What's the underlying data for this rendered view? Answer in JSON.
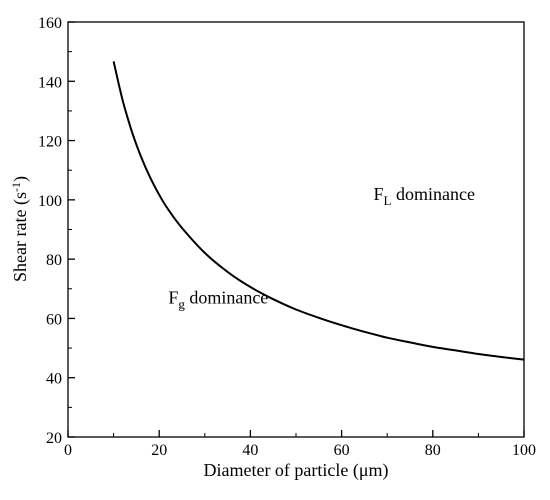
{
  "chart_data": {
    "type": "line",
    "title": "",
    "xlabel": "Diameter of particle (μm)",
    "ylabel": "Shear rate (s-1)",
    "xlim": [
      0,
      100
    ],
    "ylim": [
      20,
      160
    ],
    "xticks": [
      0,
      20,
      40,
      60,
      80,
      100
    ],
    "yticks": [
      20,
      40,
      60,
      80,
      100,
      120,
      140,
      160
    ],
    "grid": false,
    "legend": "none",
    "line_color": "#000000",
    "series": [
      {
        "x": [
          10,
          12,
          14,
          16,
          18,
          20,
          22,
          25,
          30,
          35,
          40,
          45,
          50,
          55,
          60,
          65,
          70,
          75,
          80,
          85,
          90,
          95,
          100
        ],
        "y": [
          146.7,
          133.5,
          123.1,
          114.6,
          107.6,
          101.7,
          96.7,
          90.5,
          82.1,
          75.7,
          70.6,
          66.5,
          63.0,
          60.2,
          57.7,
          55.5,
          53.5,
          51.9,
          50.4,
          49.2,
          48.0,
          47.0,
          46.1
        ]
      }
    ],
    "annotations": [
      {
        "main": "F",
        "sub": "L",
        "rest": " dominance",
        "x": 67,
        "y": 100
      },
      {
        "main": "F",
        "sub": "g",
        "rest": " dominance",
        "x": 22,
        "y": 65
      }
    ]
  }
}
